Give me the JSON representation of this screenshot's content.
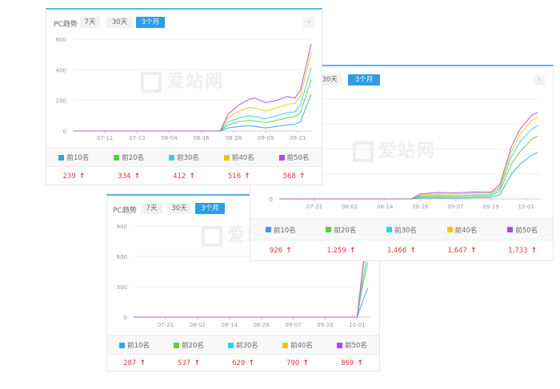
{
  "colors": {
    "top10": "#3a9ee8",
    "top20": "#5ccf3c",
    "top30": "#2dd3e0",
    "top40": "#f5c400",
    "top50": "#a64de6",
    "accent": "#2d9de6",
    "increase": "#e0393e"
  },
  "watermark": "爱站网",
  "legend": [
    "前10名",
    "前20名",
    "前30名",
    "前40名",
    "前50名"
  ],
  "up_icon": "arrow-up-icon",
  "panels": [
    {
      "header": {
        "label": "PC趋势",
        "buttons": [
          "7天",
          "30天",
          "3个月"
        ],
        "active": "3个月"
      },
      "values": [
        "239",
        "334",
        "412",
        "516",
        "568"
      ]
    },
    {
      "header": {
        "buttons": [
          "30天",
          "3个月"
        ],
        "active": "3个月"
      },
      "values": [
        "926",
        "1,259",
        "1,466",
        "1,647",
        "1,733"
      ]
    },
    {
      "header": {
        "label": "PC趋势",
        "buttons": [
          "7天",
          "30天",
          "3个月"
        ],
        "active": "3个月"
      },
      "values": [
        "287",
        "537",
        "629",
        "790",
        "869"
      ]
    }
  ],
  "chart_data": [
    {
      "type": "line",
      "xlim": [
        "06-29",
        "09-26"
      ],
      "ylim": [
        0,
        600
      ],
      "yticks": [
        "0",
        "200",
        "400",
        "600"
      ],
      "xticks": [
        "07-11",
        "07-23",
        "08-04",
        "08-16",
        "08-28",
        "09-09",
        "09-21"
      ],
      "x": [
        "06-29",
        "08-23",
        "08-26",
        "08-30",
        "09-03",
        "09-05",
        "09-09",
        "09-13",
        "09-17",
        "09-20",
        "09-22",
        "09-26"
      ],
      "series": [
        {
          "name": "前10名",
          "values": [
            0,
            0,
            20,
            30,
            35,
            30,
            20,
            30,
            40,
            45,
            60,
            239
          ]
        },
        {
          "name": "前20名",
          "values": [
            0,
            0,
            40,
            60,
            70,
            65,
            55,
            70,
            85,
            95,
            120,
            334
          ]
        },
        {
          "name": "前30名",
          "values": [
            0,
            0,
            60,
            85,
            100,
            95,
            80,
            100,
            120,
            125,
            170,
            412
          ]
        },
        {
          "name": "前40名",
          "values": [
            0,
            0,
            90,
            130,
            155,
            150,
            130,
            150,
            175,
            180,
            230,
            516
          ]
        },
        {
          "name": "前50名",
          "values": [
            0,
            0,
            110,
            170,
            210,
            215,
            185,
            200,
            225,
            215,
            270,
            568
          ]
        }
      ]
    },
    {
      "type": "line",
      "xlim": [
        "07-09",
        "10-06"
      ],
      "ylim": [
        0,
        2000
      ],
      "yticks": [
        "0"
      ],
      "xticks": [
        "07-21",
        "08-02",
        "08-14",
        "08-26",
        "09-07",
        "09-19",
        "10-01"
      ],
      "x": [
        "07-09",
        "08-23",
        "08-26",
        "09-01",
        "09-07",
        "09-13",
        "09-19",
        "09-22",
        "09-26",
        "09-29",
        "10-03",
        "10-05"
      ],
      "series": [
        {
          "name": "前10名",
          "values": [
            0,
            0,
            20,
            20,
            15,
            25,
            30,
            80,
            500,
            700,
            880,
            926
          ]
        },
        {
          "name": "前20名",
          "values": [
            0,
            0,
            40,
            45,
            40,
            55,
            60,
            150,
            700,
            950,
            1200,
            1259
          ]
        },
        {
          "name": "前30名",
          "values": [
            0,
            0,
            60,
            70,
            65,
            80,
            85,
            200,
            850,
            1150,
            1400,
            1466
          ]
        },
        {
          "name": "前40名",
          "values": [
            0,
            0,
            80,
            100,
            95,
            110,
            115,
            240,
            950,
            1300,
            1580,
            1647
          ]
        },
        {
          "name": "前50名",
          "values": [
            0,
            0,
            100,
            130,
            120,
            140,
            135,
            280,
            1050,
            1400,
            1680,
            1733
          ]
        }
      ]
    },
    {
      "type": "line",
      "xlim": [
        "07-09",
        "10-06"
      ],
      "ylim": [
        0,
        900
      ],
      "yticks": [
        "0",
        "300",
        "600",
        "900"
      ],
      "xticks": [
        "07-21",
        "08-02",
        "08-14",
        "08-26",
        "09-07",
        "09-19",
        "10-01"
      ],
      "x": [
        "07-09",
        "10-01",
        "10-03",
        "10-05"
      ],
      "series": [
        {
          "name": "前10名",
          "values": [
            0,
            0,
            150,
            287
          ]
        },
        {
          "name": "前20名",
          "values": [
            0,
            0,
            300,
            537
          ]
        },
        {
          "name": "前30名",
          "values": [
            0,
            0,
            350,
            629
          ]
        },
        {
          "name": "前40名",
          "values": [
            0,
            0,
            420,
            790
          ]
        },
        {
          "name": "前50名",
          "values": [
            0,
            0,
            460,
            869
          ]
        }
      ]
    }
  ]
}
